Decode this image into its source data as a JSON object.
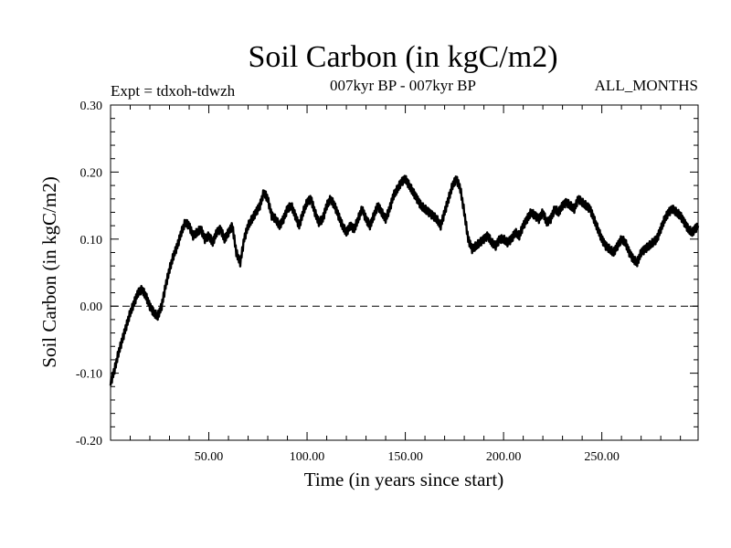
{
  "chart_data": {
    "type": "line",
    "title": "Soil Carbon (in kgC/m2)",
    "subtitle": "007kyr BP - 007kyr BP",
    "experiment_label": "Expt = tdxoh-tdwzh",
    "period_label": "ALL_MONTHS",
    "xlabel": "Time (in years since start)",
    "ylabel": "Soil Carbon (in kgC/m2)",
    "xlim": [
      0,
      299
    ],
    "ylim": [
      -0.2,
      0.3
    ],
    "x_ticks": [
      50,
      100,
      150,
      200,
      250
    ],
    "x_tick_labels": [
      "50.00",
      "100.00",
      "150.00",
      "200.00",
      "250.00"
    ],
    "y_ticks": [
      -0.2,
      -0.1,
      0.0,
      0.1,
      0.2,
      0.3
    ],
    "y_tick_labels": [
      "-0.20",
      "-0.10",
      "0.00",
      "0.10",
      "0.20",
      "0.30"
    ],
    "zero_line": "dashed",
    "grid": false,
    "series_color": "#000000",
    "series": [
      {
        "x": [
          0,
          2,
          4,
          6,
          8,
          10,
          12,
          14,
          16,
          18,
          20,
          22,
          24,
          26,
          28,
          30,
          32,
          34,
          36,
          38,
          40,
          42,
          44,
          46,
          48,
          50,
          52,
          54,
          56,
          58,
          60,
          62,
          64,
          66,
          68,
          70,
          72,
          74,
          76,
          78,
          80,
          82,
          84,
          86,
          88,
          90,
          92,
          94,
          96,
          98,
          100,
          102,
          104,
          106,
          108,
          110,
          112,
          114,
          116,
          118,
          120,
          122,
          124,
          126,
          128,
          130,
          132,
          134,
          136,
          138,
          140,
          142,
          144,
          146,
          148,
          150,
          152,
          154,
          156,
          158,
          160,
          162,
          164,
          166,
          168,
          170,
          172,
          174,
          176,
          178,
          180,
          182,
          184,
          186,
          188,
          190,
          192,
          194,
          196,
          198,
          200,
          202,
          204,
          206,
          208,
          210,
          212,
          214,
          216,
          218,
          220,
          222,
          224,
          226,
          228,
          230,
          232,
          234,
          236,
          238,
          240,
          242,
          244,
          246,
          248,
          250,
          252,
          254,
          256,
          258,
          260,
          262,
          264,
          266,
          268,
          270,
          272,
          274,
          276,
          278,
          280,
          282,
          284,
          286,
          288,
          290,
          292,
          294,
          296,
          299
        ],
        "y": [
          -0.115,
          -0.095,
          -0.07,
          -0.05,
          -0.03,
          -0.01,
          0.005,
          0.02,
          0.025,
          0.015,
          0.0,
          -0.01,
          -0.015,
          0.0,
          0.03,
          0.055,
          0.075,
          0.09,
          0.11,
          0.125,
          0.12,
          0.105,
          0.11,
          0.115,
          0.1,
          0.105,
          0.095,
          0.11,
          0.115,
          0.1,
          0.11,
          0.12,
          0.08,
          0.065,
          0.1,
          0.12,
          0.13,
          0.14,
          0.15,
          0.17,
          0.16,
          0.135,
          0.13,
          0.12,
          0.13,
          0.145,
          0.15,
          0.135,
          0.12,
          0.14,
          0.155,
          0.16,
          0.14,
          0.125,
          0.13,
          0.15,
          0.16,
          0.15,
          0.135,
          0.12,
          0.11,
          0.12,
          0.115,
          0.13,
          0.145,
          0.13,
          0.12,
          0.135,
          0.15,
          0.14,
          0.13,
          0.145,
          0.165,
          0.175,
          0.185,
          0.19,
          0.18,
          0.17,
          0.16,
          0.15,
          0.145,
          0.14,
          0.135,
          0.13,
          0.12,
          0.14,
          0.16,
          0.18,
          0.19,
          0.175,
          0.14,
          0.1,
          0.085,
          0.09,
          0.095,
          0.1,
          0.105,
          0.095,
          0.09,
          0.1,
          0.1,
          0.095,
          0.1,
          0.11,
          0.105,
          0.12,
          0.13,
          0.14,
          0.135,
          0.13,
          0.14,
          0.125,
          0.13,
          0.145,
          0.14,
          0.15,
          0.155,
          0.15,
          0.145,
          0.16,
          0.155,
          0.15,
          0.145,
          0.13,
          0.115,
          0.1,
          0.09,
          0.085,
          0.08,
          0.09,
          0.1,
          0.095,
          0.08,
          0.07,
          0.065,
          0.08,
          0.085,
          0.09,
          0.095,
          0.1,
          0.115,
          0.13,
          0.14,
          0.145,
          0.14,
          0.135,
          0.125,
          0.115,
          0.11,
          0.12
        ]
      }
    ]
  }
}
